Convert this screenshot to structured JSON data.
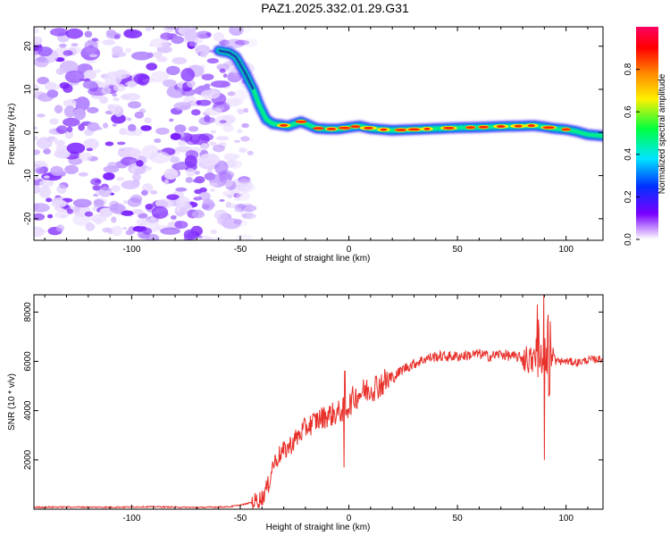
{
  "title": "PAZ1.2025.332.01.29.G31",
  "chart_data": [
    {
      "type": "heatmap",
      "id": "spectrogram",
      "xlabel": "Height of straight line (km)",
      "ylabel": "Frequency (Hz)",
      "xlim": [
        -145,
        117
      ],
      "ylim": [
        -25,
        24.5
      ],
      "xticks": [
        -100,
        -50,
        0,
        50,
        100
      ],
      "yticks": [
        -20,
        -10,
        0,
        10,
        20
      ],
      "colorbar": {
        "label": "Normalized spectral amplitude",
        "range": [
          0,
          1
        ],
        "ticks": [
          "0.0",
          "0.2",
          "0.4",
          "0.6",
          "0.8"
        ],
        "colormap": [
          "#ffffff",
          "#7a00ff",
          "#0030ff",
          "#00e5ff",
          "#00ff40",
          "#fff000",
          "#ff8a00",
          "#ff0000",
          "#ff0060"
        ]
      },
      "ridge": {
        "description_free": true,
        "height_km": [
          -60,
          -55,
          -52,
          -48,
          -44,
          -41,
          -38,
          -35,
          -32,
          -28,
          -22,
          -15,
          -10,
          -5,
          0,
          5,
          10,
          20,
          30,
          40,
          50,
          60,
          70,
          80,
          85,
          90,
          95,
          100,
          105,
          110,
          117
        ],
        "frequency_hz": [
          19,
          18.5,
          17.5,
          14,
          10,
          6,
          3,
          2,
          1.8,
          1.5,
          2.5,
          1,
          0.8,
          0.8,
          1.2,
          1.5,
          0.9,
          0.5,
          0.7,
          0.9,
          1.1,
          1.2,
          1.4,
          1.5,
          1.6,
          1.3,
          0.9,
          0.7,
          0.2,
          -0.5,
          -0.8
        ]
      },
      "noise_region_km": [
        -145,
        -50
      ]
    },
    {
      "type": "line",
      "id": "snr",
      "xlabel": "Height of straight line (km)",
      "ylabel": "SNR (10 * v/v)",
      "xlim": [
        -145,
        117
      ],
      "ylim": [
        0,
        8700
      ],
      "xticks": [
        -100,
        -50,
        0,
        50,
        100
      ],
      "yticks": [
        2000,
        4000,
        6000,
        8000
      ],
      "color": "#e8302a",
      "series": [
        {
          "name": "SNR",
          "x": [
            -145,
            -130,
            -110,
            -90,
            -70,
            -55,
            -48,
            -44,
            -40,
            -37,
            -35,
            -32,
            -28,
            -24,
            -20,
            -15,
            -10,
            -5,
            -2,
            0,
            2,
            5,
            10,
            15,
            20,
            25,
            30,
            35,
            40,
            45,
            50,
            55,
            60,
            65,
            70,
            75,
            80,
            85,
            88,
            90,
            92,
            95,
            100,
            105,
            110,
            117
          ],
          "y": [
            80,
            90,
            80,
            100,
            70,
            100,
            200,
            300,
            450,
            1000,
            1800,
            2200,
            2500,
            2900,
            3300,
            3600,
            3800,
            3900,
            4100,
            4200,
            4500,
            4700,
            4900,
            5100,
            5300,
            5700,
            5900,
            6100,
            6200,
            6200,
            6200,
            6250,
            6300,
            6200,
            6300,
            6200,
            6150,
            6000,
            6300,
            5800,
            6200,
            6000,
            6000,
            5950,
            6050,
            6100
          ]
        }
      ],
      "spikes": [
        {
          "x": -2,
          "min": 1700,
          "max": 5600
        },
        {
          "x": 87,
          "min": 3800,
          "max": 8300
        },
        {
          "x": 90,
          "min": 2000,
          "max": 8700
        },
        {
          "x": 92,
          "min": 4600,
          "max": 7900
        }
      ]
    }
  ]
}
